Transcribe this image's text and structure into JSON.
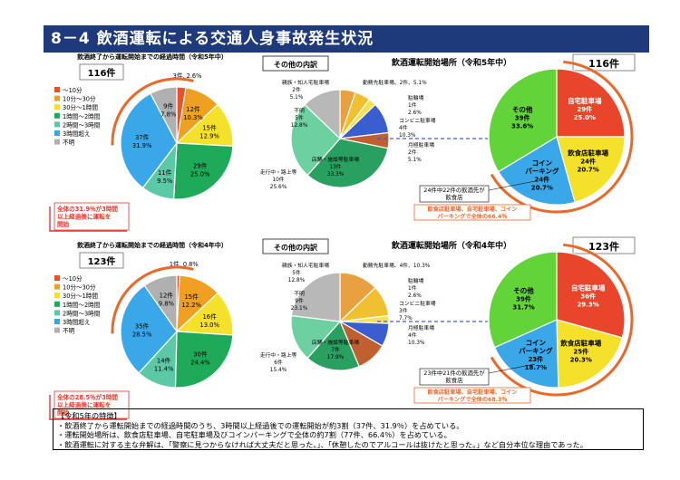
{
  "page": {
    "title": "8－4 飲酒運転による交通人身事故発生状況",
    "colors": {
      "title_bg": "#1f3a7a",
      "accent_red": "#e8362a",
      "accent_orange": "#e8692a"
    }
  },
  "bottom_notes": {
    "heading": "【令和5年の特徴】",
    "lines": [
      "・飲酒終了から運転開始までの経過時間のうち、3時間以上経過後での運転開始が約3割（37件、31.9％）を占めている。",
      "・運転開始場所は、飲食店駐車場、自宅駐車場及びコインパーキングで全体の約7割（77件、66.4％）を占めている。",
      "・飲酒運転に対する主な弁解は、「警察に見つからなければ大丈夫だと思った。」、「休憩したのでアルコールは抜けたと思った。」など自分本位な理由であった。"
    ]
  },
  "chart_data": [
    {
      "id": "time_r5",
      "type": "pie",
      "title": "飲酒終了から運転開始までの経過時間（令和5年中）",
      "total_label": "116件",
      "legend": [
        "～10分",
        "10分～30分",
        "30分～1時間",
        "1時間～2時間",
        "2時間～3時間",
        "3時間超え",
        "不明"
      ],
      "slices": [
        {
          "name": "～10分",
          "count": "3件",
          "percent": "2.6%",
          "value": 3,
          "color": "#e8512a"
        },
        {
          "name": "10分～30分",
          "count": "12件",
          "percent": "10.3%",
          "value": 12,
          "color": "#f0a020"
        },
        {
          "name": "30分～1時間",
          "count": "15件",
          "percent": "12.9%",
          "value": 15,
          "color": "#f5e02a"
        },
        {
          "name": "1時間～2時間",
          "count": "29件",
          "percent": "25.0%",
          "value": 29,
          "color": "#1faa5a"
        },
        {
          "name": "2時間～3時間",
          "count": "11件",
          "percent": "9.5%",
          "value": 11,
          "color": "#5cc9a6"
        },
        {
          "name": "3時間超え",
          "count": "37件",
          "percent": "31.9%",
          "value": 37,
          "color": "#3aa8e8"
        },
        {
          "name": "不明",
          "count": "9件",
          "percent": "7.8%",
          "value": 9,
          "color": "#b0b0b0"
        }
      ],
      "annotation": [
        "全体の31.9％が3時間",
        "以上経過後に運転を",
        "開始"
      ]
    },
    {
      "id": "time_r4",
      "type": "pie",
      "title": "飲酒終了から運転開始までの経過時間（令和4年中）",
      "total_label": "123件",
      "legend": [
        "～10分",
        "10分～30分",
        "30分～1時間",
        "1時間～2時間",
        "2時間～3時間",
        "3時間超え",
        "不明"
      ],
      "slices": [
        {
          "name": "～10分",
          "count": "1件",
          "percent": "0.8%",
          "value": 1,
          "color": "#e8512a"
        },
        {
          "name": "10分～30分",
          "count": "15件",
          "percent": "12.2%",
          "value": 15,
          "color": "#f0a020"
        },
        {
          "name": "30分～1時間",
          "count": "16件",
          "percent": "13.0%",
          "value": 16,
          "color": "#f5e02a"
        },
        {
          "name": "1時間～2時間",
          "count": "30件",
          "percent": "24.4%",
          "value": 30,
          "color": "#1faa5a"
        },
        {
          "name": "2時間～3時間",
          "count": "14件",
          "percent": "11.4%",
          "value": 14,
          "color": "#5cc9a6"
        },
        {
          "name": "3時間超え",
          "count": "35件",
          "percent": "28.5%",
          "value": 35,
          "color": "#3aa8e8"
        },
        {
          "name": "不明",
          "count": "12件",
          "percent": "9.8%",
          "value": 12,
          "color": "#b0b0b0"
        }
      ],
      "annotation": [
        "全体の28.5％が3時間",
        "以上経過後に運転を",
        "開始"
      ]
    },
    {
      "id": "place_r5",
      "type": "pie",
      "title": "飲酒運転開始場所（令和5年中）",
      "total_label": "116件",
      "slices": [
        {
          "name": "自宅駐車場",
          "count": "29件",
          "percent": "25.0%",
          "value": 29,
          "color": "#e8452a"
        },
        {
          "name": "飲食店駐車場",
          "count": "24件",
          "percent": "20.7%",
          "value": 24,
          "color": "#f5e02a"
        },
        {
          "name": "コインパーキング",
          "count": "24件",
          "percent": "20.7%",
          "value": 24,
          "color": "#3aa8e8"
        },
        {
          "name": "その他",
          "count": "39件",
          "percent": "33.6%",
          "value": 39,
          "color": "#62d43a"
        }
      ],
      "callout": [
        "24件中22件の飲酒先が",
        "飲食店"
      ],
      "annotation": [
        "飲食店駐車場、自宅駐車場、コイン",
        "パーキングで全体の66.4％"
      ]
    },
    {
      "id": "other_r5",
      "type": "pie",
      "title": "その他の内訳",
      "slices": [
        {
          "name": "親族・知人宅駐車場",
          "count": "2件",
          "percent": "5.1%",
          "value": 2,
          "color": "#e8a040"
        },
        {
          "name": "勤務先駐車場",
          "count": "2件",
          "percent": "5.1%",
          "value": 2,
          "color": "#f0c030"
        },
        {
          "name": "駐輪場",
          "count": "1件",
          "percent": "2.6%",
          "value": 1,
          "color": "#f5e050"
        },
        {
          "name": "コンビニ駐車場",
          "count": "4件",
          "percent": "10.3%",
          "value": 4,
          "color": "#3a5ed0"
        },
        {
          "name": "月極駐車場",
          "count": "2件",
          "percent": "5.1%",
          "value": 2,
          "color": "#c06030"
        },
        {
          "name": "店舗・施設等駐車場",
          "count": "13件",
          "percent": "33.3%",
          "value": 13,
          "color": "#2aa060"
        },
        {
          "name": "走行中・路上等",
          "count": "10件",
          "percent": "25.6%",
          "value": 10,
          "color": "#6dd0a0"
        },
        {
          "name": "不明",
          "count": "5件",
          "percent": "12.8%",
          "value": 5,
          "color": "#b8b8b8"
        }
      ]
    },
    {
      "id": "place_r4",
      "type": "pie",
      "title": "飲酒運転開始場所（令和4年中）",
      "total_label": "123件",
      "slices": [
        {
          "name": "自宅駐車場",
          "count": "36件",
          "percent": "29.3%",
          "value": 36,
          "color": "#e8452a"
        },
        {
          "name": "飲食店駐車場",
          "count": "25件",
          "percent": "20.3%",
          "value": 25,
          "color": "#f5e02a"
        },
        {
          "name": "コインパーキング",
          "count": "23件",
          "percent": "18.7%",
          "value": 23,
          "color": "#3aa8e8"
        },
        {
          "name": "その他",
          "count": "39件",
          "percent": "31.7%",
          "value": 39,
          "color": "#62d43a"
        }
      ],
      "callout": [
        "23件中21件の飲酒先が",
        "飲食店"
      ],
      "annotation": [
        "飲食店駐車場、自宅駐車場、コイン",
        "パーキングで全体の68.3％"
      ]
    },
    {
      "id": "other_r4",
      "type": "pie",
      "title": "その他の内訳",
      "slices": [
        {
          "name": "親族・知人宅駐車場",
          "count": "5件",
          "percent": "12.8%",
          "value": 5,
          "color": "#e8a040"
        },
        {
          "name": "勤務先駐車場",
          "count": "4件",
          "percent": "10.3%",
          "value": 4,
          "color": "#f0c030"
        },
        {
          "name": "駐輪場",
          "count": "1件",
          "percent": "2.6%",
          "value": 1,
          "color": "#f5e050"
        },
        {
          "name": "コンビニ駐車場",
          "count": "3件",
          "percent": "7.7%",
          "value": 3,
          "color": "#3a5ed0"
        },
        {
          "name": "月極駐車場",
          "count": "4件",
          "percent": "10.3%",
          "value": 4,
          "color": "#c06030"
        },
        {
          "name": "店舗・施設等駐車場",
          "count": "7件",
          "percent": "17.9%",
          "value": 7,
          "color": "#2aa060"
        },
        {
          "name": "走行中・路上等",
          "count": "6件",
          "percent": "15.4%",
          "value": 6,
          "color": "#6dd0a0"
        },
        {
          "name": "不明",
          "count": "9件",
          "percent": "23.1%",
          "value": 9,
          "color": "#b8b8b8"
        }
      ]
    }
  ]
}
